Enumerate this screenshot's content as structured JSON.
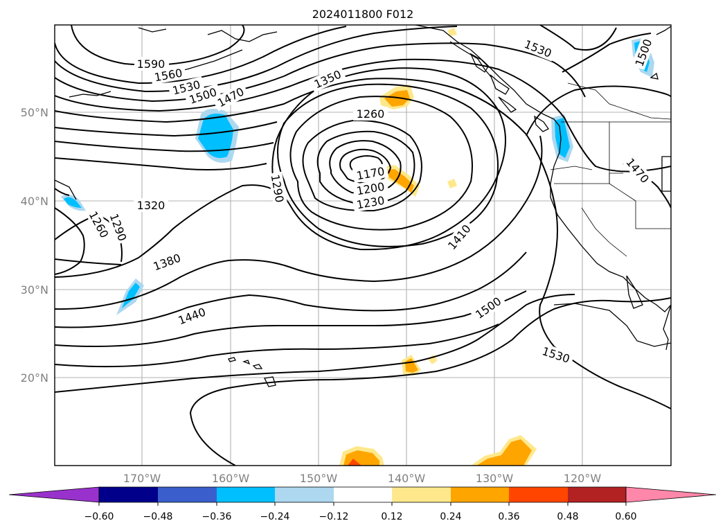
{
  "title": "2024011800 F012",
  "lat_labels": [
    "50°N",
    "40°N",
    "30°N",
    "20°N"
  ],
  "lon_labels": [
    "170°W",
    "160°W",
    "150°W",
    "140°W",
    "130°W",
    "120°W"
  ],
  "contour_labels": [
    "1590",
    "1560",
    "1530",
    "1500",
    "1470",
    "1350",
    "1260",
    "1290",
    "1170",
    "1200",
    "1230",
    "1320",
    "1260",
    "1290",
    "1380",
    "1440",
    "1410",
    "1500",
    "1530",
    "1530",
    "1500",
    "1470"
  ],
  "colorbar": {
    "ticks": [
      "−0.60",
      "−0.48",
      "−0.36",
      "−0.24",
      "−0.12",
      "0.12",
      "0.24",
      "0.36",
      "0.48",
      "0.60"
    ],
    "colors": [
      "#9932cc",
      "#00008b",
      "#3a5fcd",
      "#00bfff",
      "#add8f0",
      "#ffffff",
      "#ffe88c",
      "#ffa500",
      "#ff4500",
      "#b22222",
      "#ff88aa"
    ]
  }
}
